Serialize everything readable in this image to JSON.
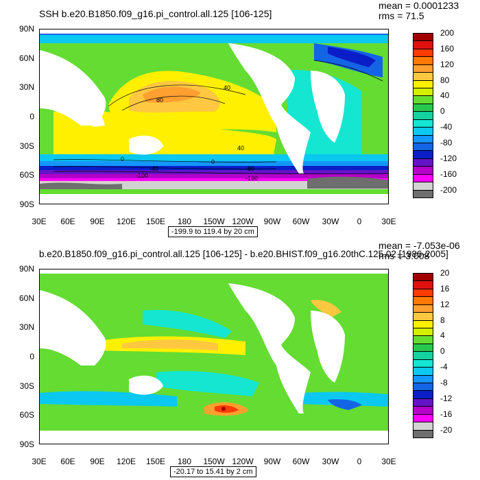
{
  "top": {
    "title": "SSH b.e20.B1850.f09_g16.pi_control.all.125 [106-125]",
    "mean": "mean = 0.0001233",
    "rms": "rms = 71.5",
    "range": "-199.9 to 119.4 by 20 cm",
    "lat_labels": [
      "90N",
      "60N",
      "30N",
      "0",
      "30S",
      "60S",
      "90S"
    ],
    "lon_labels": [
      "30E",
      "60E",
      "90E",
      "120E",
      "150E",
      "180",
      "150W",
      "120W",
      "90W",
      "60W",
      "30W",
      "0",
      "30E"
    ],
    "colorbar_labels": [
      "200",
      "160",
      "120",
      "80",
      "40",
      "0",
      "-40",
      "-80",
      "-120",
      "-160",
      "-200"
    ],
    "colorbar_colors": [
      "#a00000",
      "#e01010",
      "#ff3c00",
      "#ff7800",
      "#ffa030",
      "#ffc840",
      "#fff000",
      "#d2f000",
      "#64dc32",
      "#28c850",
      "#14d2a0",
      "#14e6d2",
      "#0ac8f0",
      "#1496ff",
      "#1464e6",
      "#0a1ec8",
      "#6414c8",
      "#b400c8",
      "#ff00ff",
      "#d2d2d2",
      "#6e6e6e"
    ],
    "contour_labels": [
      "80",
      "40",
      "0",
      "40",
      "0",
      "-40",
      "-80",
      "-100",
      "-160"
    ]
  },
  "bottom": {
    "title": "b.e20.B1850.f09_g16.pi_control.all.125 [106-125] - b.e20.BHIST.f09_g16.20thC.125.02 [1986-2005]",
    "mean": "mean = -7.053e-06",
    "rms": "rms = 3.008",
    "range": "-20.17 to 15.41 by 2 cm",
    "lat_labels": [
      "90N",
      "60N",
      "30N",
      "0",
      "30S",
      "60S",
      "90S"
    ],
    "lon_labels": [
      "30E",
      "60E",
      "90E",
      "120E",
      "150E",
      "180",
      "150W",
      "120W",
      "90W",
      "60W",
      "30W",
      "0",
      "30E"
    ],
    "colorbar_labels": [
      "20",
      "16",
      "12",
      "8",
      "4",
      "0",
      "-4",
      "-8",
      "-12",
      "-16",
      "-20"
    ],
    "colorbar_colors": [
      "#a00000",
      "#e01010",
      "#ff3c00",
      "#ff7800",
      "#ffa030",
      "#ffc840",
      "#fff000",
      "#d2f000",
      "#64dc32",
      "#28c850",
      "#14d2a0",
      "#14e6d2",
      "#0ac8f0",
      "#1496ff",
      "#1464e6",
      "#0a1ec8",
      "#6414c8",
      "#b400c8",
      "#ff00ff",
      "#d2d2d2",
      "#6e6e6e"
    ]
  }
}
